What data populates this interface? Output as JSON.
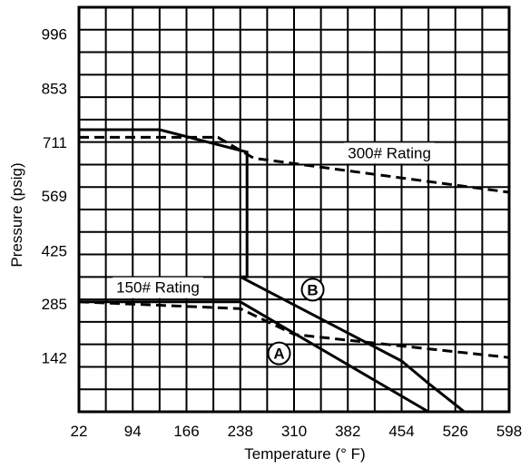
{
  "chart_data": {
    "type": "line",
    "title": "",
    "xlabel": "Temperature (° F)",
    "ylabel": "Pressure (psig)",
    "xlim": [
      22,
      598
    ],
    "ylim": [
      0,
      1067
    ],
    "grid": true,
    "x_ticks": [
      "22",
      "94",
      "166",
      "238",
      "310",
      "382",
      "454",
      "526",
      "598"
    ],
    "y_ticks": [
      {
        "label": "996",
        "value": 996
      },
      {
        "label": "853",
        "value": 853
      },
      {
        "label": "711",
        "value": 711
      },
      {
        "label": "569",
        "value": 569
      },
      {
        "label": "425",
        "value": 425
      },
      {
        "label": "285",
        "value": 285
      },
      {
        "label": "142",
        "value": 142
      }
    ],
    "series": [
      {
        "name": "300# Rating",
        "dash": true,
        "color": "#000000",
        "points": [
          [
            22,
            724
          ],
          [
            208,
            724
          ],
          [
            256,
            669
          ],
          [
            598,
            579
          ]
        ]
      },
      {
        "name": "",
        "dash": false,
        "color": "#000000",
        "points": [
          [
            22,
            744
          ],
          [
            130,
            744
          ],
          [
            247,
            685
          ],
          [
            247,
            356
          ],
          [
            238,
            356
          ],
          [
            454,
            134
          ],
          [
            490,
            75
          ],
          [
            538,
            0
          ]
        ]
      },
      {
        "name": "150# Rating",
        "dash": true,
        "color": "#000000",
        "points": [
          [
            22,
            290
          ],
          [
            238,
            272
          ],
          [
            310,
            204
          ],
          [
            598,
            143
          ]
        ]
      },
      {
        "name": "",
        "dash": false,
        "color": "#000000",
        "points": [
          [
            22,
            290
          ],
          [
            238,
            290
          ],
          [
            490,
            0
          ]
        ]
      }
    ],
    "annotations": [
      {
        "text": "300# Rating",
        "x": 382,
        "y": 669
      },
      {
        "text": "150# Rating",
        "x": 72,
        "y": 314
      }
    ],
    "markers": [
      {
        "text": "A",
        "x": 290,
        "y": 154
      },
      {
        "text": "B",
        "x": 335,
        "y": 322
      }
    ]
  }
}
